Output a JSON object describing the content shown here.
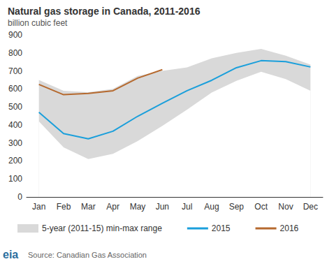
{
  "chart_data": {
    "type": "line",
    "title": "Natural gas storage in Canada, 2011-2016",
    "subtitle": "billion cubic feet",
    "source": "Source: Canadian Gas Association",
    "logo": "eia",
    "categories": [
      "Jan",
      "Feb",
      "Mar",
      "Apr",
      "May",
      "Jun",
      "Jul",
      "Aug",
      "Sep",
      "Oct",
      "Nov",
      "Dec"
    ],
    "series": [
      {
        "name": "5-year (2011-15) min-max range",
        "type": "band",
        "color": "#d9d9d9",
        "min": [
          420,
          275,
          210,
          240,
          310,
          395,
          485,
          580,
          645,
          695,
          655,
          590
        ],
        "max": [
          650,
          590,
          582,
          600,
          672,
          700,
          720,
          770,
          800,
          822,
          785,
          735
        ]
      },
      {
        "name": "2015",
        "type": "line",
        "color": "#1a9fdb",
        "values": [
          470,
          352,
          323,
          365,
          448,
          520,
          590,
          648,
          718,
          757,
          752,
          722
        ]
      },
      {
        "name": "2016",
        "type": "line",
        "color": "#b5692e",
        "values": [
          625,
          568,
          575,
          590,
          660,
          707,
          null,
          null,
          null,
          null,
          null,
          null
        ]
      }
    ],
    "ylim": [
      0,
      900
    ],
    "yticks": [
      0,
      100,
      200,
      300,
      400,
      500,
      600,
      700,
      800,
      900
    ],
    "grid": false,
    "legend": "bottom"
  }
}
